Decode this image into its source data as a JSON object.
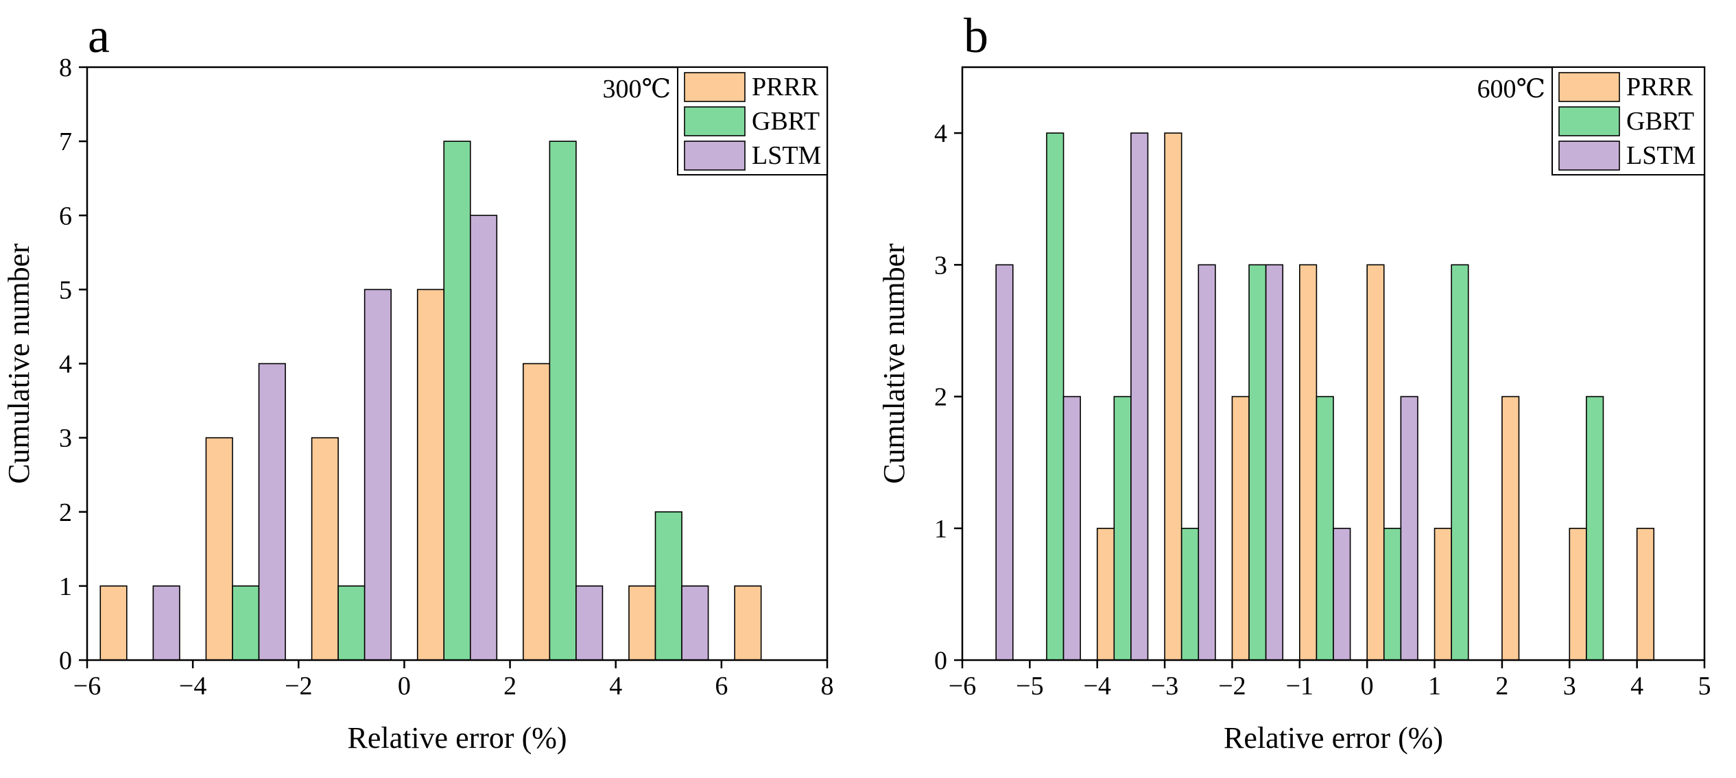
{
  "colors": {
    "PRRR": "#fdcb97",
    "GBRT": "#80d99c",
    "LSTM": "#c7b0d8",
    "edge": "#000000"
  },
  "chart_data": [
    {
      "type": "bar",
      "panel": "a",
      "temperature": "300℃",
      "xlabel": "Relative error (%)",
      "ylabel": "Cumulative number",
      "xlim": [
        -6,
        8
      ],
      "ylim": [
        0,
        8
      ],
      "xticks": [
        -6,
        -4,
        -2,
        0,
        2,
        4,
        6,
        8
      ],
      "yticks": [
        0,
        1,
        2,
        3,
        4,
        5,
        6,
        7,
        8
      ],
      "xtick_labels": [
        "−6",
        "−4",
        "−2",
        "0",
        "2",
        "4",
        "6",
        "8"
      ],
      "ytick_labels": [
        "0",
        "1",
        "2",
        "3",
        "4",
        "5",
        "6",
        "7",
        "8"
      ],
      "bar_width": 0.5,
      "legend": [
        "PRRR",
        "GBRT",
        "LSTM"
      ],
      "legend_position": "top-right",
      "series": [
        {
          "name": "PRRR",
          "x": [
            -5.5,
            -3.5,
            -1.5,
            0.5,
            2.5,
            4.5,
            6.5
          ],
          "values": [
            1,
            3,
            3,
            5,
            4,
            1,
            1
          ]
        },
        {
          "name": "GBRT",
          "x": [
            -3.0,
            -1.0,
            1.0,
            3.0,
            5.0
          ],
          "values": [
            1,
            1,
            7,
            7,
            2
          ]
        },
        {
          "name": "LSTM",
          "x": [
            -4.5,
            -2.5,
            -0.5,
            1.5,
            3.5,
            5.5
          ],
          "values": [
            1,
            4,
            5,
            6,
            1,
            1
          ]
        }
      ]
    },
    {
      "type": "bar",
      "panel": "b",
      "temperature": "600℃",
      "xlabel": "Relative error (%)",
      "ylabel": "Cumulative number",
      "xlim": [
        -6,
        5
      ],
      "ylim": [
        0,
        4.5
      ],
      "xticks": [
        -6,
        -5,
        -4,
        -3,
        -2,
        -1,
        0,
        1,
        2,
        3,
        4,
        5
      ],
      "yticks": [
        0,
        1,
        2,
        3,
        4
      ],
      "xtick_labels": [
        "−6",
        "−5",
        "−4",
        "−3",
        "−2",
        "−1",
        "0",
        "1",
        "2",
        "3",
        "4",
        "5"
      ],
      "ytick_labels": [
        "0",
        "1",
        "2",
        "3",
        "4"
      ],
      "bar_width": 0.25,
      "legend": [
        "PRRR",
        "GBRT",
        "LSTM"
      ],
      "legend_position": "top-right",
      "series": [
        {
          "name": "PRRR",
          "x": [
            -3.875,
            -2.875,
            -1.875,
            -0.875,
            0.125,
            1.125,
            2.125,
            3.125,
            4.125
          ],
          "values": [
            1,
            4,
            2,
            3,
            3,
            1,
            2,
            1,
            1
          ]
        },
        {
          "name": "GBRT",
          "x": [
            -4.625,
            -3.625,
            -2.625,
            -1.625,
            -0.625,
            0.375,
            1.375,
            3.375
          ],
          "values": [
            4,
            2,
            1,
            3,
            2,
            1,
            3,
            2
          ]
        },
        {
          "name": "LSTM",
          "x": [
            -5.375,
            -4.375,
            -3.375,
            -2.375,
            -1.375,
            -0.375,
            0.625
          ],
          "values": [
            3,
            2,
            4,
            3,
            3,
            1,
            2
          ]
        }
      ]
    }
  ]
}
